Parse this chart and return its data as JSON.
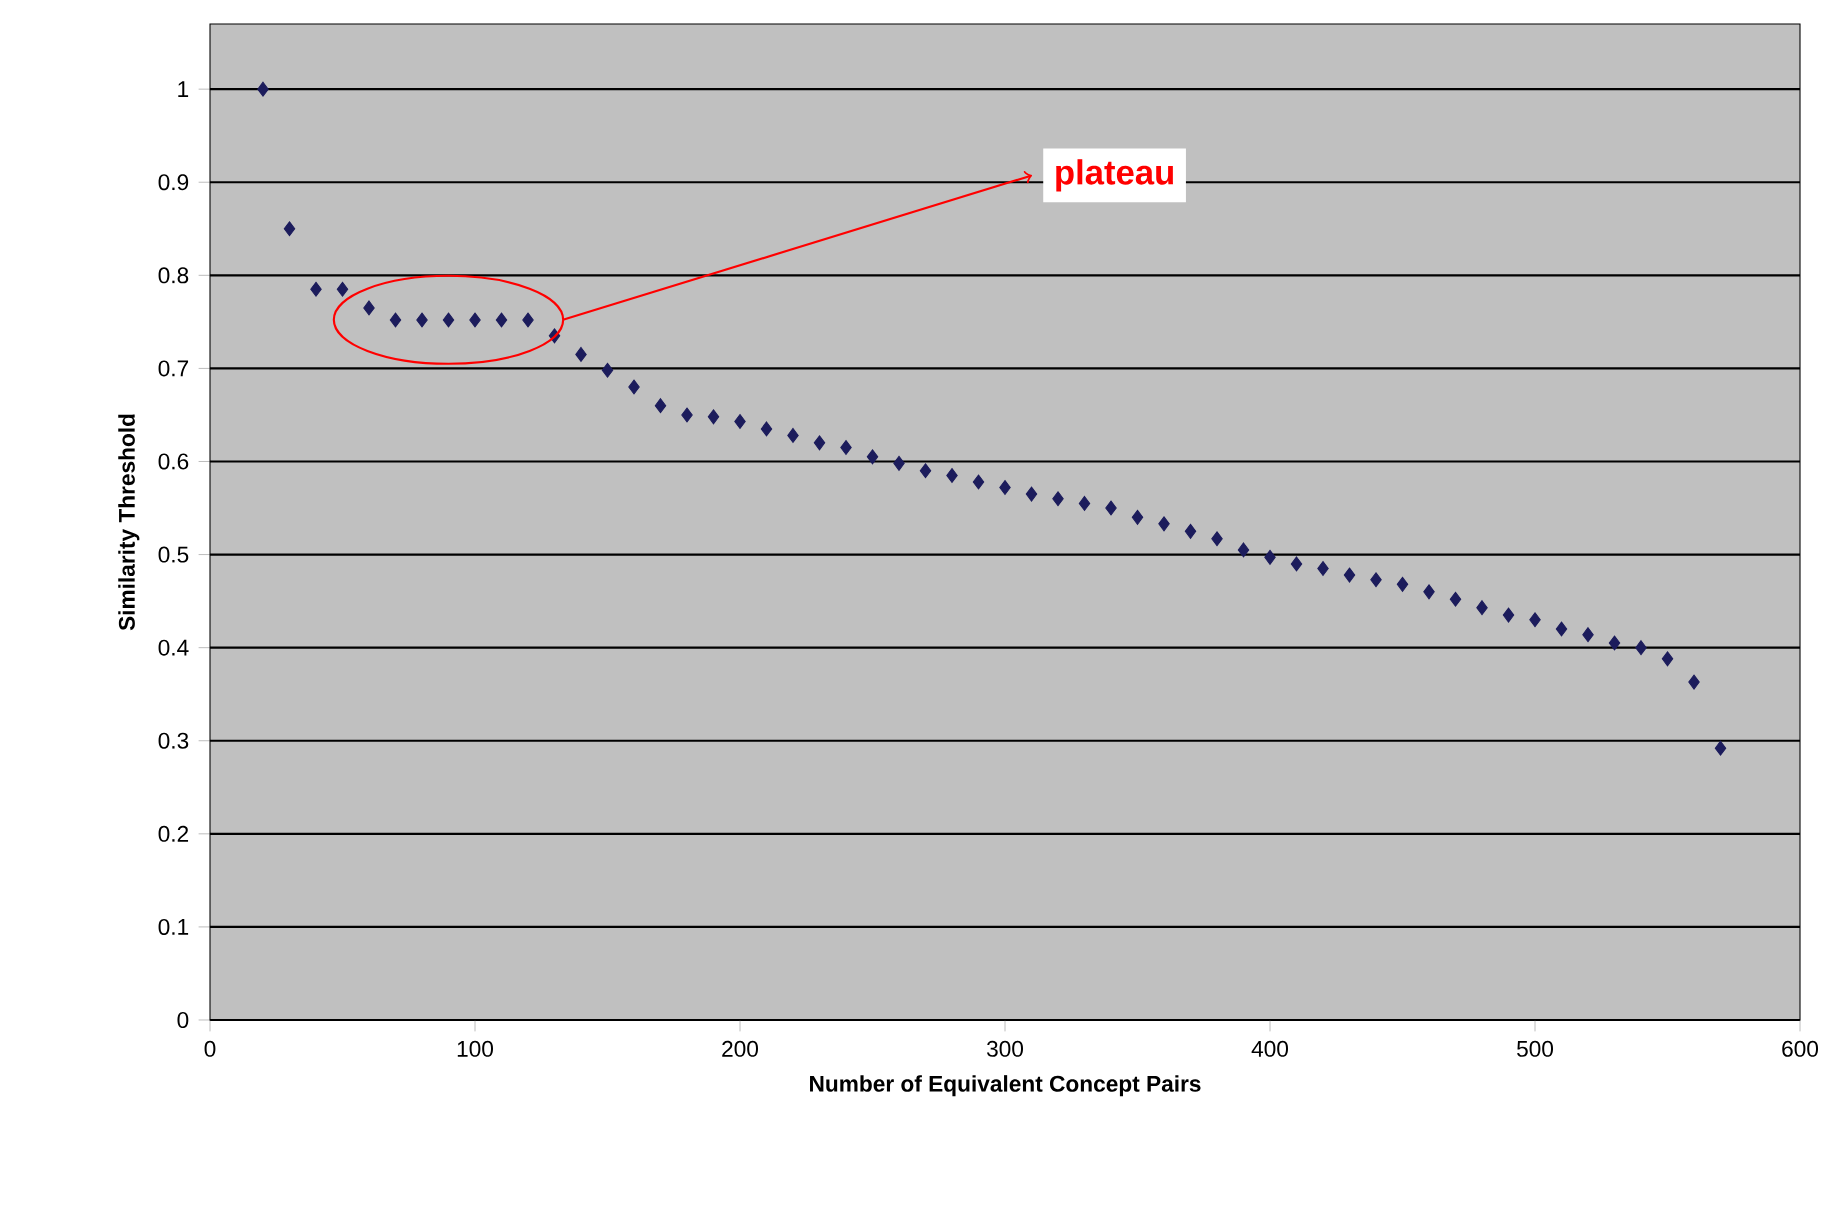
{
  "chart_data": {
    "type": "scatter",
    "xlabel": "Number of Equivalent Concept Pairs",
    "ylabel": "Similarity Threshold",
    "x": [
      20,
      30,
      40,
      50,
      60,
      70,
      80,
      90,
      100,
      110,
      120,
      130,
      140,
      150,
      160,
      170,
      180,
      190,
      200,
      210,
      220,
      230,
      240,
      250,
      260,
      270,
      280,
      290,
      300,
      310,
      320,
      330,
      340,
      350,
      360,
      370,
      380,
      390,
      400,
      410,
      420,
      430,
      440,
      450,
      460,
      470,
      480,
      490,
      500,
      510,
      520,
      530,
      540,
      550,
      560,
      570
    ],
    "series": [
      {
        "color": "#1c1c5c",
        "values": [
          1.0,
          0.85,
          0.785,
          0.785,
          0.765,
          0.752,
          0.752,
          0.752,
          0.752,
          0.752,
          0.752,
          0.735,
          0.715,
          0.698,
          0.68,
          0.66,
          0.65,
          0.648,
          0.643,
          0.635,
          0.628,
          0.62,
          0.615,
          0.605,
          0.598,
          0.59,
          0.585,
          0.578,
          0.572,
          0.565,
          0.56,
          0.555,
          0.55,
          0.54,
          0.533,
          0.525,
          0.517,
          0.505,
          0.497,
          0.49,
          0.485,
          0.478,
          0.473,
          0.468,
          0.46,
          0.452,
          0.443,
          0.435,
          0.43,
          0.42,
          0.414,
          0.405,
          0.4,
          0.388,
          0.363,
          0.292
        ]
      }
    ],
    "xlim": [
      0,
      600
    ],
    "ylim": [
      0,
      1.07
    ],
    "xticks": [
      0,
      100,
      200,
      300,
      400,
      500,
      600
    ],
    "yticks": [
      0,
      0.1,
      0.2,
      0.3,
      0.4,
      0.5,
      0.6,
      0.7,
      0.8,
      0.9,
      1
    ],
    "grid": "y",
    "marker": "diamond",
    "annotations": [
      "plateau"
    ]
  }
}
